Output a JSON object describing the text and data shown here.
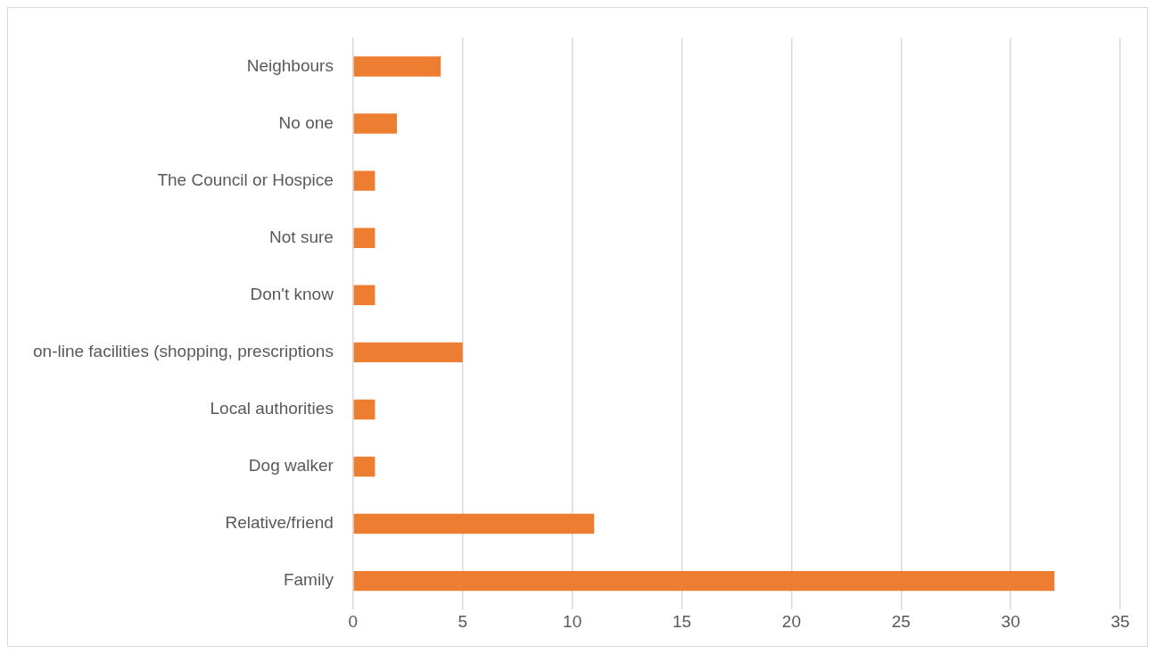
{
  "chart_data": {
    "type": "bar",
    "orientation": "horizontal",
    "categories": [
      "Neighbours",
      "No one",
      "The Council or Hospice",
      "Not sure",
      "Don't know",
      "on-line facilities (shopping, prescriptions",
      "Local authorities",
      "Dog walker",
      "Relative/friend",
      "Family"
    ],
    "values": [
      4,
      2,
      1,
      1,
      1,
      5,
      1,
      1,
      11,
      32
    ],
    "color": "#ed7d31",
    "xlim": [
      0,
      35
    ],
    "xticks": [
      0,
      5,
      10,
      15,
      20,
      25,
      30,
      35
    ],
    "grid": "x"
  }
}
